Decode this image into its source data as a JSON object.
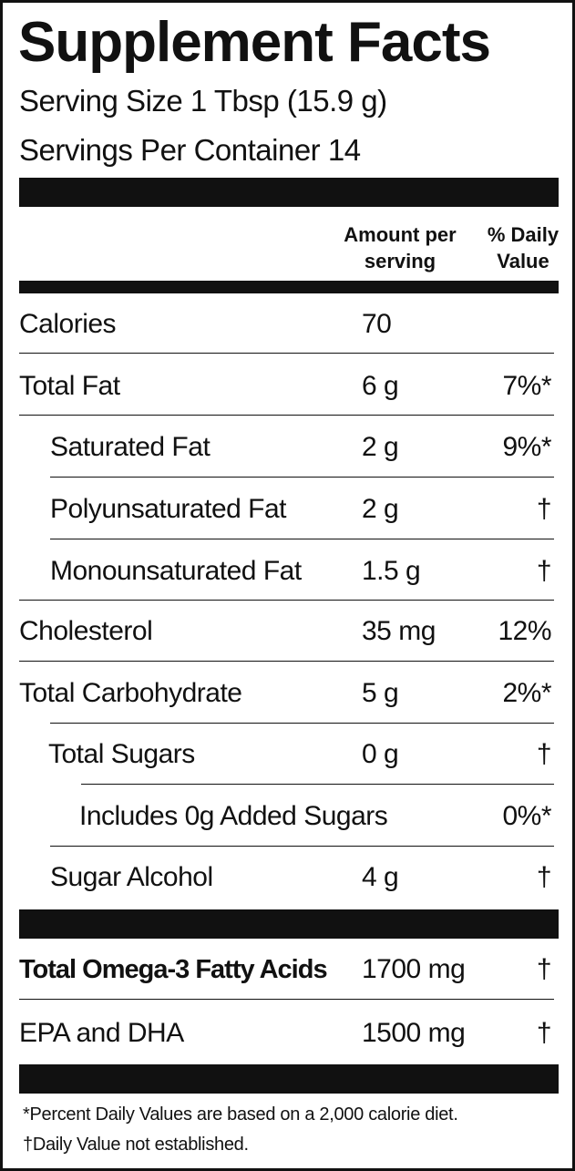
{
  "title": "Supplement Facts",
  "serving_size": "Serving Size 1 Tbsp (15.9 g)",
  "servings_per_container": "Servings Per Container 14",
  "column_headers": {
    "amount_line1": "Amount per",
    "amount_line2": "serving",
    "dv_line1": "% Daily",
    "dv_line2": "Value"
  },
  "nutrients": [
    {
      "label": "Calories",
      "amount": "70",
      "dv": ""
    },
    {
      "label": "Total Fat",
      "amount": "6 g",
      "dv": "7%*"
    },
    {
      "label": "Saturated Fat",
      "amount": "2 g",
      "dv": "9%*"
    },
    {
      "label": "Polyunsaturated Fat",
      "amount": "2 g",
      "dv": "†"
    },
    {
      "label": "Monounsaturated Fat",
      "amount": "1.5 g",
      "dv": "†"
    },
    {
      "label": "Cholesterol",
      "amount": "35 mg",
      "dv": "12%"
    },
    {
      "label": "Total Carbohydrate",
      "amount": "5 g",
      "dv": "2%*"
    },
    {
      "label": "Total Sugars",
      "amount": "0 g",
      "dv": "†"
    },
    {
      "label": "Includes 0g Added Sugars",
      "amount": "",
      "dv": "0%*"
    },
    {
      "label": "Sugar Alcohol",
      "amount": "4 g",
      "dv": "†"
    }
  ],
  "omega": [
    {
      "label": "Total Omega-3 Fatty Acids",
      "amount": "1700 mg",
      "dv": "†"
    },
    {
      "label": "EPA and DHA",
      "amount": "1500 mg",
      "dv": "†"
    }
  ],
  "footnotes": [
    "*Percent Daily Values are based on a 2,000 calorie diet.",
    "†Daily Value not established."
  ]
}
